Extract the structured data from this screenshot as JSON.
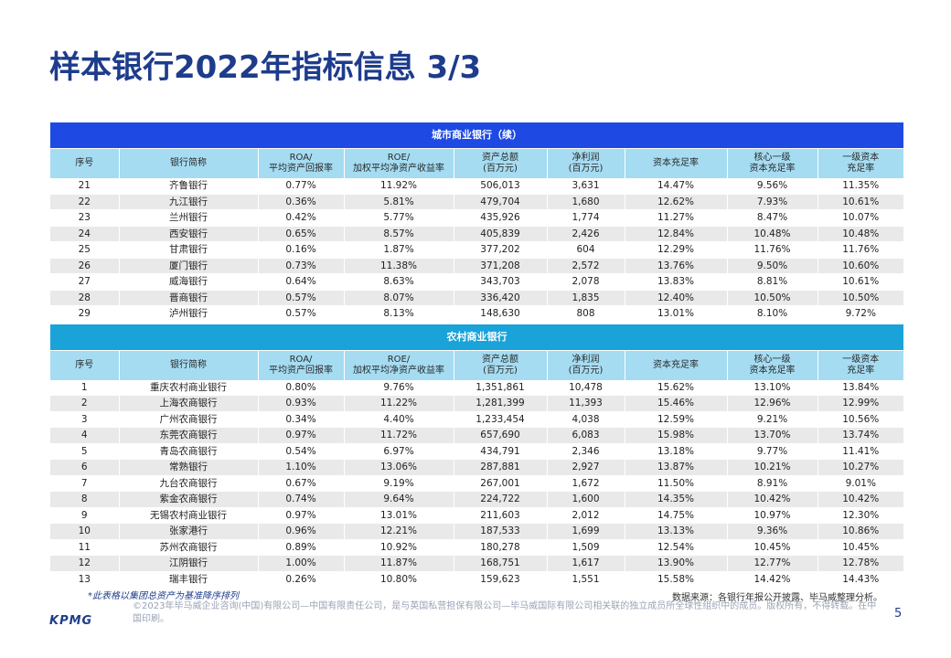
{
  "page": {
    "title": "样本银行2022年指标信息 3/3",
    "note": "*此表格以集团总资产为基准降序排列",
    "source": "数据来源：各银行年报公开披露、毕马威整理分析。",
    "copyright": "©2023年毕马威企业咨询(中国)有限公司—中国有限责任公司，是与英国私营担保有限公司—毕马威国际有限公司相关联的独立成员所全球性组织中的成员。版权所有，不得转载。在中国印刷。",
    "logo": "KPMG",
    "page_number": "5"
  },
  "headers": [
    [
      "序号"
    ],
    [
      "银行简称"
    ],
    [
      "ROA/",
      "平均资产回报率"
    ],
    [
      "ROE/",
      "加权平均净资产收益率"
    ],
    [
      "资产总额",
      "(百万元)"
    ],
    [
      "净利润",
      "(百万元)"
    ],
    [
      "资本充足率"
    ],
    [
      "核心一级",
      "资本充足率"
    ],
    [
      "一级资本",
      "充足率"
    ]
  ],
  "sections": [
    {
      "title": "城市商业银行（续）",
      "style": "dark",
      "rows": [
        [
          "21",
          "齐鲁银行",
          "0.77%",
          "11.92%",
          "506,013",
          "3,631",
          "14.47%",
          "9.56%",
          "11.35%"
        ],
        [
          "22",
          "九江银行",
          "0.36%",
          "5.81%",
          "479,704",
          "1,680",
          "12.62%",
          "7.93%",
          "10.61%"
        ],
        [
          "23",
          "兰州银行",
          "0.42%",
          "5.77%",
          "435,926",
          "1,774",
          "11.27%",
          "8.47%",
          "10.07%"
        ],
        [
          "24",
          "西安银行",
          "0.65%",
          "8.57%",
          "405,839",
          "2,426",
          "12.84%",
          "10.48%",
          "10.48%"
        ],
        [
          "25",
          "甘肃银行",
          "0.16%",
          "1.87%",
          "377,202",
          "604",
          "12.29%",
          "11.76%",
          "11.76%"
        ],
        [
          "26",
          "厦门银行",
          "0.73%",
          "11.38%",
          "371,208",
          "2,572",
          "13.76%",
          "9.50%",
          "10.60%"
        ],
        [
          "27",
          "威海银行",
          "0.64%",
          "8.63%",
          "343,703",
          "2,078",
          "13.83%",
          "8.81%",
          "10.61%"
        ],
        [
          "28",
          "晋商银行",
          "0.57%",
          "8.07%",
          "336,420",
          "1,835",
          "12.40%",
          "10.50%",
          "10.50%"
        ],
        [
          "29",
          "泸州银行",
          "0.57%",
          "8.13%",
          "148,630",
          "808",
          "13.01%",
          "8.10%",
          "9.72%"
        ]
      ]
    },
    {
      "title": "农村商业银行",
      "style": "light",
      "rows": [
        [
          "1",
          "重庆农村商业银行",
          "0.80%",
          "9.76%",
          "1,351,861",
          "10,478",
          "15.62%",
          "13.10%",
          "13.84%"
        ],
        [
          "2",
          "上海农商银行",
          "0.93%",
          "11.22%",
          "1,281,399",
          "11,393",
          "15.46%",
          "12.96%",
          "12.99%"
        ],
        [
          "3",
          "广州农商银行",
          "0.34%",
          "4.40%",
          "1,233,454",
          "4,038",
          "12.59%",
          "9.21%",
          "10.56%"
        ],
        [
          "4",
          "东莞农商银行",
          "0.97%",
          "11.72%",
          "657,690",
          "6,083",
          "15.98%",
          "13.70%",
          "13.74%"
        ],
        [
          "5",
          "青岛农商银行",
          "0.54%",
          "6.97%",
          "434,791",
          "2,346",
          "13.18%",
          "9.77%",
          "11.41%"
        ],
        [
          "6",
          "常熟银行",
          "1.10%",
          "13.06%",
          "287,881",
          "2,927",
          "13.87%",
          "10.21%",
          "10.27%"
        ],
        [
          "7",
          "九台农商银行",
          "0.67%",
          "9.19%",
          "267,001",
          "1,672",
          "11.50%",
          "8.91%",
          "9.01%"
        ],
        [
          "8",
          "紫金农商银行",
          "0.74%",
          "9.64%",
          "224,722",
          "1,600",
          "14.35%",
          "10.42%",
          "10.42%"
        ],
        [
          "9",
          "无锡农村商业银行",
          "0.97%",
          "13.01%",
          "211,603",
          "2,012",
          "14.75%",
          "10.97%",
          "12.30%"
        ],
        [
          "10",
          "张家港行",
          "0.96%",
          "12.21%",
          "187,533",
          "1,699",
          "13.13%",
          "9.36%",
          "10.86%"
        ],
        [
          "11",
          "苏州农商银行",
          "0.89%",
          "10.92%",
          "180,278",
          "1,509",
          "12.54%",
          "10.45%",
          "10.45%"
        ],
        [
          "12",
          "江阴银行",
          "1.00%",
          "11.87%",
          "168,751",
          "1,617",
          "13.90%",
          "12.77%",
          "12.78%"
        ],
        [
          "13",
          "瑞丰银行",
          "0.26%",
          "10.80%",
          "159,623",
          "1,551",
          "15.58%",
          "14.42%",
          "14.43%"
        ]
      ]
    }
  ]
}
